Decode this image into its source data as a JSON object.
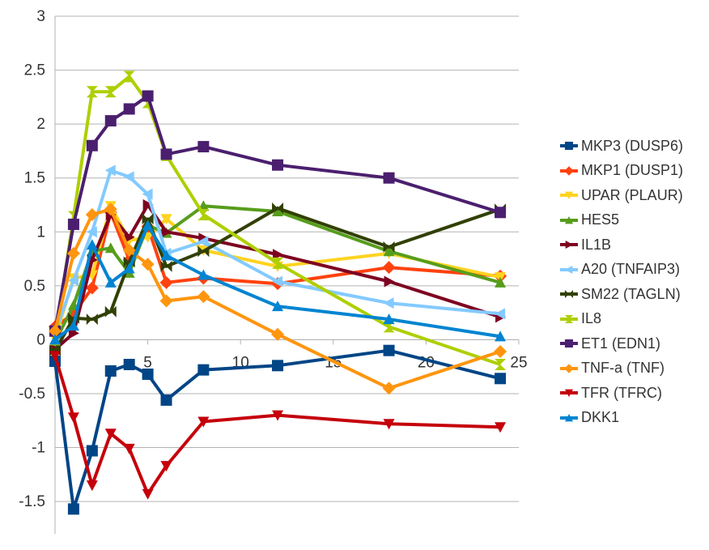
{
  "chart_data": {
    "type": "line",
    "title": "",
    "xlabel": "",
    "ylabel": "",
    "xlim": [
      0,
      25
    ],
    "ylim": [
      -1.8,
      3
    ],
    "x_ticks": [
      "0",
      "5",
      "10",
      "15",
      "20",
      "25"
    ],
    "y_ticks": [
      "3",
      "2.5",
      "2",
      "1.5",
      "1",
      "0.5",
      "0",
      "-0.5",
      "-1",
      "-1.5"
    ],
    "grid": "horizontal",
    "legend_position": "right",
    "series": [
      {
        "name": "MKP3 (DUSP6)",
        "color": "#004586",
        "marker": "square",
        "x": [
          0,
          1,
          2,
          3,
          4,
          5,
          6,
          8,
          12,
          18,
          24
        ],
        "y": [
          -0.2,
          -1.57,
          -1.03,
          -0.29,
          -0.23,
          -0.32,
          -0.56,
          -0.28,
          -0.24,
          -0.1,
          -0.36
        ]
      },
      {
        "name": "MKP1 (DUSP1)",
        "color": "#ff420e",
        "marker": "diamond",
        "x": [
          0,
          1,
          2,
          3,
          4,
          5,
          6,
          8,
          12,
          18,
          24
        ],
        "y": [
          0.12,
          0.24,
          0.48,
          1.18,
          0.74,
          1.05,
          0.53,
          0.57,
          0.52,
          0.67,
          0.59
        ]
      },
      {
        "name": "UPAR (PLAUR)",
        "color": "#ffd320",
        "marker": "triangle-down",
        "x": [
          0,
          1,
          2,
          3,
          4,
          5,
          6,
          8,
          12,
          18,
          24
        ],
        "y": [
          0.01,
          0.57,
          0.6,
          1.24,
          0.92,
          0.95,
          1.12,
          0.83,
          0.68,
          0.8,
          0.58
        ]
      },
      {
        "name": "HES5",
        "color": "#579d1c",
        "marker": "triangle-up",
        "x": [
          0,
          1,
          2,
          3,
          4,
          5,
          6,
          8,
          12,
          18,
          24
        ],
        "y": [
          -0.02,
          0.32,
          0.82,
          0.85,
          0.62,
          1.06,
          0.99,
          1.24,
          1.19,
          0.82,
          0.53
        ]
      },
      {
        "name": "IL1B",
        "color": "#7e0021",
        "marker": "triangle-right",
        "x": [
          0,
          1,
          2,
          3,
          4,
          5,
          6,
          8,
          12,
          18,
          24
        ],
        "y": [
          -0.09,
          0.06,
          0.74,
          1.16,
          0.95,
          1.25,
          1.0,
          0.94,
          0.79,
          0.54,
          0.21
        ]
      },
      {
        "name": "A20 (TNFAIP3)",
        "color": "#83caff",
        "marker": "triangle-left",
        "x": [
          0,
          1,
          2,
          3,
          4,
          5,
          6,
          8,
          12,
          18,
          24
        ],
        "y": [
          0.06,
          0.55,
          1.0,
          1.57,
          1.51,
          1.35,
          0.8,
          0.91,
          0.54,
          0.34,
          0.24
        ]
      },
      {
        "name": "SM22 (TAGLN)",
        "color": "#314004",
        "marker": "bowtie",
        "x": [
          0,
          1,
          2,
          3,
          4,
          5,
          6,
          8,
          12,
          18,
          24
        ],
        "y": [
          -0.1,
          0.2,
          0.19,
          0.26,
          0.72,
          1.12,
          0.68,
          0.82,
          1.22,
          0.86,
          1.21
        ]
      },
      {
        "name": "IL8",
        "color": "#aecf00",
        "marker": "hourglass",
        "x": [
          0,
          1,
          2,
          3,
          4,
          5,
          6,
          8,
          12,
          18,
          24
        ],
        "y": [
          0.0,
          1.14,
          2.3,
          2.3,
          2.44,
          2.2,
          1.71,
          1.16,
          0.71,
          0.12,
          -0.23
        ]
      },
      {
        "name": "ET1 (EDN1)",
        "color": "#4b1f6f",
        "marker": "square",
        "x": [
          0,
          1,
          2,
          3,
          4,
          5,
          6,
          8,
          12,
          18,
          24
        ],
        "y": [
          0.08,
          1.07,
          1.8,
          2.03,
          2.14,
          2.26,
          1.72,
          1.79,
          1.62,
          1.5,
          1.18
        ]
      },
      {
        "name": "TNF-a (TNF)",
        "color": "#ff950e",
        "marker": "diamond",
        "x": [
          0,
          1,
          2,
          3,
          4,
          5,
          6,
          8,
          12,
          18,
          24
        ],
        "y": [
          0.08,
          0.8,
          1.16,
          1.21,
          0.83,
          0.7,
          0.36,
          0.4,
          0.05,
          -0.45,
          -0.11
        ]
      },
      {
        "name": "TFR (TFRC)",
        "color": "#c5000b",
        "marker": "triangle-down",
        "x": [
          0,
          1,
          2,
          3,
          4,
          5,
          6,
          8,
          12,
          18,
          24
        ],
        "y": [
          -0.15,
          -0.72,
          -1.35,
          -0.87,
          -1.01,
          -1.43,
          -1.17,
          -0.76,
          -0.7,
          -0.78,
          -0.81
        ]
      },
      {
        "name": "DKK1",
        "color": "#0084d1",
        "marker": "triangle-up",
        "x": [
          0,
          1,
          2,
          3,
          4,
          5,
          6,
          8,
          12,
          18,
          24
        ],
        "y": [
          0.0,
          0.13,
          0.88,
          0.53,
          0.66,
          1.06,
          0.78,
          0.6,
          0.31,
          0.19,
          0.03
        ]
      }
    ]
  }
}
